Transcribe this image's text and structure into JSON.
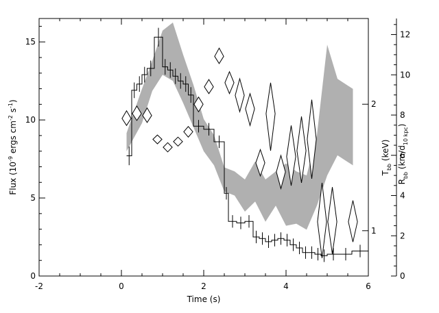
{
  "chart_data": {
    "type": "line",
    "title": "",
    "xlabel": "Time (s)",
    "ylabel_left": {
      "main": "Flux (10",
      "sup1": "-9",
      "mid": " ergs cm",
      "sup2": "-2",
      "mid2": " s",
      "sup3": "-1",
      "end": ")"
    },
    "ylabel_right_inner": {
      "main": "T",
      "sub": "bb",
      "end": " (keV)"
    },
    "ylabel_right_outer": {
      "main": "R",
      "sub": "bb",
      "mid": " (km/d",
      "sub2": "10 kpc",
      "end": ")"
    },
    "xlim": [
      -2,
      6
    ],
    "ylim_flux": [
      0,
      16.5
    ],
    "ylim_radius": [
      0,
      12.8
    ],
    "tlog_range": [
      0.78,
      3.2
    ],
    "x_ticks": [
      -2,
      0,
      2,
      4,
      6
    ],
    "flux_ticks": [
      0,
      5,
      10,
      15
    ],
    "radius_ticks": [
      0,
      2,
      4,
      6,
      8,
      10,
      12
    ],
    "temp_ticks": [
      1,
      2
    ],
    "series": [
      {
        "kind": "flux-histogram",
        "axis": "flux",
        "bins": [
          {
            "x0": 0.125,
            "x1": 0.25,
            "y": 7.7,
            "err": 0.6
          },
          {
            "x0": 0.25,
            "x1": 0.375,
            "y": 11.9,
            "err": 0.5
          },
          {
            "x0": 0.375,
            "x1": 0.5,
            "y": 12.3,
            "err": 0.5
          },
          {
            "x0": 0.5,
            "x1": 0.625,
            "y": 12.9,
            "err": 0.5
          },
          {
            "x0": 0.625,
            "x1": 0.8,
            "y": 13.3,
            "err": 0.5
          },
          {
            "x0": 0.8,
            "x1": 1.0,
            "y": 15.3,
            "err": 0.6
          },
          {
            "x0": 1.0,
            "x1": 1.125,
            "y": 13.4,
            "err": 0.5
          },
          {
            "x0": 1.125,
            "x1": 1.25,
            "y": 13.2,
            "err": 0.5
          },
          {
            "x0": 1.25,
            "x1": 1.375,
            "y": 12.8,
            "err": 0.5
          },
          {
            "x0": 1.375,
            "x1": 1.5,
            "y": 12.5,
            "err": 0.5
          },
          {
            "x0": 1.5,
            "x1": 1.625,
            "y": 12.3,
            "err": 0.5
          },
          {
            "x0": 1.625,
            "x1": 1.75,
            "y": 11.6,
            "err": 0.5
          },
          {
            "x0": 1.75,
            "x1": 2.0,
            "y": 9.6,
            "err": 0.4
          },
          {
            "x0": 2.0,
            "x1": 2.25,
            "y": 9.4,
            "err": 0.4
          },
          {
            "x0": 2.25,
            "x1": 2.5,
            "y": 8.6,
            "err": 0.4
          },
          {
            "x0": 2.5,
            "x1": 2.6,
            "y": 5.3,
            "err": 0.4
          },
          {
            "x0": 2.6,
            "x1": 2.8,
            "y": 3.5,
            "err": 0.4
          },
          {
            "x0": 2.8,
            "x1": 3.0,
            "y": 3.4,
            "err": 0.4
          },
          {
            "x0": 3.0,
            "x1": 3.2,
            "y": 3.5,
            "err": 0.4
          },
          {
            "x0": 3.2,
            "x1": 3.35,
            "y": 2.5,
            "err": 0.4
          },
          {
            "x0": 3.35,
            "x1": 3.5,
            "y": 2.4,
            "err": 0.4
          },
          {
            "x0": 3.5,
            "x1": 3.65,
            "y": 2.2,
            "err": 0.4
          },
          {
            "x0": 3.65,
            "x1": 3.8,
            "y": 2.3,
            "err": 0.4
          },
          {
            "x0": 3.8,
            "x1": 3.95,
            "y": 2.4,
            "err": 0.4
          },
          {
            "x0": 3.95,
            "x1": 4.1,
            "y": 2.3,
            "err": 0.4
          },
          {
            "x0": 4.1,
            "x1": 4.25,
            "y": 2.0,
            "err": 0.4
          },
          {
            "x0": 4.25,
            "x1": 4.4,
            "y": 1.8,
            "err": 0.4
          },
          {
            "x0": 4.4,
            "x1": 4.55,
            "y": 1.5,
            "err": 0.4
          },
          {
            "x0": 4.55,
            "x1": 4.7,
            "y": 1.5,
            "err": 0.4
          },
          {
            "x0": 4.7,
            "x1": 4.85,
            "y": 1.4,
            "err": 0.4
          },
          {
            "x0": 4.85,
            "x1": 5.0,
            "y": 1.3,
            "err": 0.4
          },
          {
            "x0": 5.0,
            "x1": 5.3,
            "y": 1.4,
            "err": 0.4
          },
          {
            "x0": 5.3,
            "x1": 5.6,
            "y": 1.4,
            "err": 0.4
          },
          {
            "x0": 5.6,
            "x1": 6.0,
            "y": 1.6,
            "err": 0.4
          }
        ]
      },
      {
        "kind": "radius-band",
        "axis": "radius",
        "x": [
          0.125,
          0.5,
          0.75,
          1.0,
          1.25,
          1.5,
          1.75,
          2.0,
          2.25,
          2.5,
          2.75,
          3.0,
          3.25,
          3.5,
          3.75,
          4.0,
          4.25,
          4.5,
          4.75,
          5.0,
          5.25,
          5.625
        ],
        "low": [
          6.2,
          7.6,
          9.2,
          10.0,
          9.7,
          8.6,
          7.4,
          6.2,
          5.5,
          4.2,
          4.0,
          3.2,
          3.7,
          2.7,
          3.5,
          2.5,
          2.6,
          2.3,
          3.5,
          5.0,
          6.0,
          5.5
        ],
        "high": [
          7.1,
          9.3,
          10.7,
          12.2,
          12.6,
          11.0,
          9.5,
          7.8,
          7.0,
          5.4,
          5.2,
          4.8,
          5.7,
          4.8,
          5.2,
          5.6,
          5.2,
          5.0,
          7.0,
          11.5,
          9.8,
          9.3
        ]
      },
      {
        "kind": "temperature-diamonds",
        "axis": "temperature",
        "points": [
          {
            "x": 0.125,
            "y": 1.85,
            "dx": 0.11,
            "ylo": 1.78,
            "yhi": 1.93
          },
          {
            "x": 0.375,
            "y": 1.9,
            "dx": 0.11,
            "ylo": 1.83,
            "yhi": 1.98
          },
          {
            "x": 0.625,
            "y": 1.88,
            "dx": 0.11,
            "ylo": 1.81,
            "yhi": 1.96
          },
          {
            "x": 0.875,
            "y": 1.65,
            "dx": 0.11,
            "ylo": 1.61,
            "yhi": 1.69
          },
          {
            "x": 1.125,
            "y": 1.58,
            "dx": 0.11,
            "ylo": 1.54,
            "yhi": 1.62
          },
          {
            "x": 1.375,
            "y": 1.63,
            "dx": 0.11,
            "ylo": 1.59,
            "yhi": 1.67
          },
          {
            "x": 1.625,
            "y": 1.72,
            "dx": 0.11,
            "ylo": 1.67,
            "yhi": 1.77
          },
          {
            "x": 1.875,
            "y": 2.0,
            "dx": 0.11,
            "ylo": 1.92,
            "yhi": 2.08
          },
          {
            "x": 2.125,
            "y": 2.2,
            "dx": 0.11,
            "ylo": 2.12,
            "yhi": 2.29
          },
          {
            "x": 2.375,
            "y": 2.6,
            "dx": 0.11,
            "ylo": 2.5,
            "yhi": 2.72
          },
          {
            "x": 2.625,
            "y": 2.25,
            "dx": 0.11,
            "ylo": 2.12,
            "yhi": 2.39
          },
          {
            "x": 2.875,
            "y": 2.1,
            "dx": 0.11,
            "ylo": 1.92,
            "yhi": 2.3
          },
          {
            "x": 3.125,
            "y": 1.95,
            "dx": 0.11,
            "ylo": 1.78,
            "yhi": 2.12
          },
          {
            "x": 3.375,
            "y": 1.45,
            "dx": 0.11,
            "ylo": 1.35,
            "yhi": 1.56
          },
          {
            "x": 3.625,
            "y": 1.9,
            "dx": 0.11,
            "ylo": 1.55,
            "yhi": 2.25
          },
          {
            "x": 3.875,
            "y": 1.38,
            "dx": 0.11,
            "ylo": 1.26,
            "yhi": 1.51
          },
          {
            "x": 4.125,
            "y": 1.5,
            "dx": 0.11,
            "ylo": 1.28,
            "yhi": 1.78
          },
          {
            "x": 4.375,
            "y": 1.55,
            "dx": 0.11,
            "ylo": 1.3,
            "yhi": 1.87
          },
          {
            "x": 4.625,
            "y": 1.65,
            "dx": 0.11,
            "ylo": 1.33,
            "yhi": 2.05
          },
          {
            "x": 4.875,
            "y": 1.05,
            "dx": 0.11,
            "ylo": 0.86,
            "yhi": 1.3
          },
          {
            "x": 5.125,
            "y": 1.05,
            "dx": 0.11,
            "ylo": 0.88,
            "yhi": 1.27
          },
          {
            "x": 5.625,
            "y": 1.05,
            "dx": 0.11,
            "ylo": 0.94,
            "yhi": 1.18
          }
        ]
      }
    ],
    "colors": {
      "band": "#b0b0b0",
      "line": "#000000"
    }
  }
}
